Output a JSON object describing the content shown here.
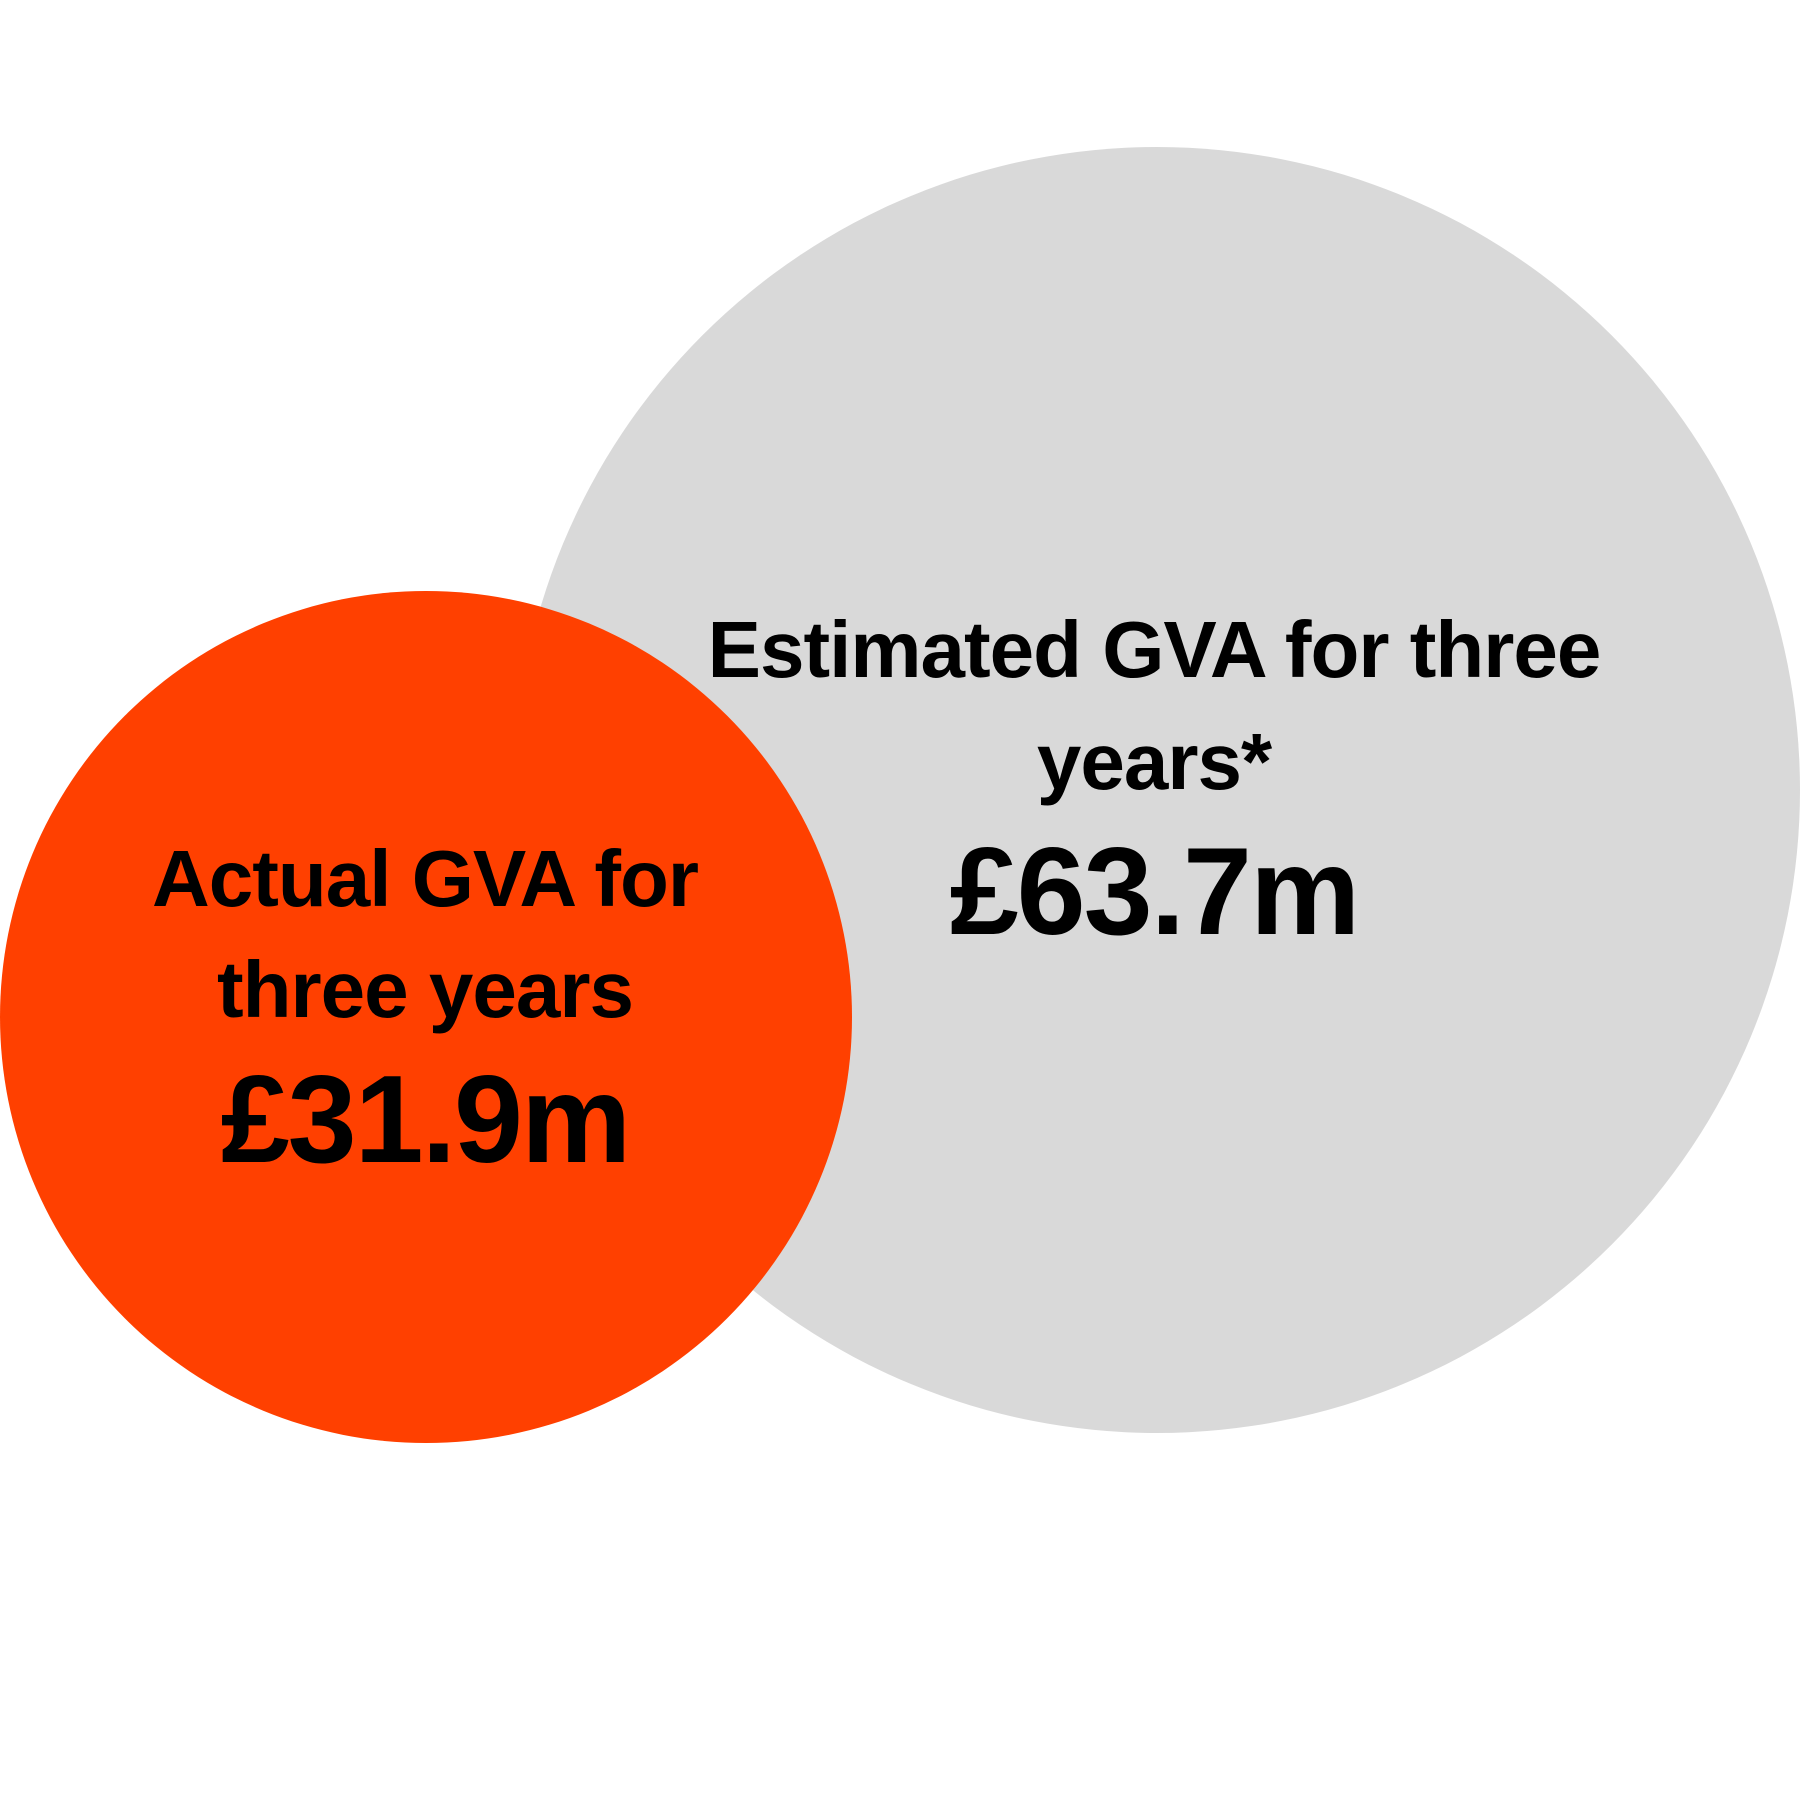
{
  "colors": {
    "estimated": "#d9d9d9",
    "actual": "#ff4000",
    "text": "#000000"
  },
  "estimated": {
    "label_line1": "Estimated GVA for three",
    "label_line2": "years*",
    "value": "£63.7m"
  },
  "actual": {
    "label_line1": "Actual GVA for",
    "label_line2": "three years",
    "value": "£31.9m"
  }
}
